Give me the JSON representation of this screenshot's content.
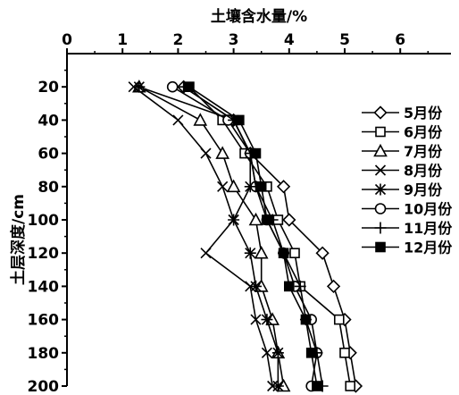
{
  "chart_data": {
    "type": "line",
    "orientation": "horizontal-value-vertical-depth",
    "xlabel": "土壤含水量/%",
    "ylabel": "土层深度/cm",
    "x_axis_position": "top",
    "y_axis_inverted": true,
    "xlim": [
      0,
      7
    ],
    "ylim": [
      0,
      200
    ],
    "x_ticks": [
      0,
      1,
      2,
      3,
      4,
      5,
      6
    ],
    "y_ticks": [
      20,
      40,
      60,
      80,
      100,
      120,
      140,
      160,
      180,
      200
    ],
    "depths": [
      20,
      40,
      60,
      80,
      100,
      120,
      140,
      160,
      180,
      200
    ],
    "grid": false,
    "legend_position": "right",
    "series": [
      {
        "name": "5月份",
        "marker": "diamond",
        "values": [
          2.1,
          3.0,
          3.3,
          3.9,
          4.0,
          4.6,
          4.8,
          5.0,
          5.1,
          5.2
        ]
      },
      {
        "name": "6月份",
        "marker": "square",
        "values": [
          2.2,
          2.8,
          3.2,
          3.6,
          3.8,
          4.1,
          4.2,
          4.9,
          5.0,
          5.1
        ]
      },
      {
        "name": "7月份",
        "marker": "triangle",
        "values": [
          1.3,
          2.4,
          2.8,
          3.0,
          3.4,
          3.5,
          3.5,
          3.7,
          3.8,
          3.9
        ]
      },
      {
        "name": "8月份",
        "marker": "x",
        "values": [
          1.2,
          2.0,
          2.5,
          2.8,
          3.0,
          2.5,
          3.3,
          3.4,
          3.6,
          3.7
        ]
      },
      {
        "name": "9月份",
        "marker": "asterisk",
        "values": [
          1.3,
          3.0,
          3.3,
          3.3,
          3.0,
          3.3,
          3.4,
          3.6,
          3.8,
          3.8
        ]
      },
      {
        "name": "10月份",
        "marker": "circle",
        "values": [
          1.9,
          2.9,
          3.3,
          3.4,
          3.6,
          3.9,
          4.1,
          4.4,
          4.5,
          4.4
        ]
      },
      {
        "name": "11月份",
        "marker": "plus",
        "values": [
          2.1,
          3.0,
          3.3,
          3.4,
          3.7,
          3.9,
          4.2,
          4.3,
          4.5,
          4.6
        ]
      },
      {
        "name": "12月份",
        "marker": "square-filled",
        "values": [
          2.2,
          3.1,
          3.4,
          3.5,
          3.6,
          3.9,
          4.0,
          4.3,
          4.4,
          4.5
        ]
      }
    ]
  }
}
